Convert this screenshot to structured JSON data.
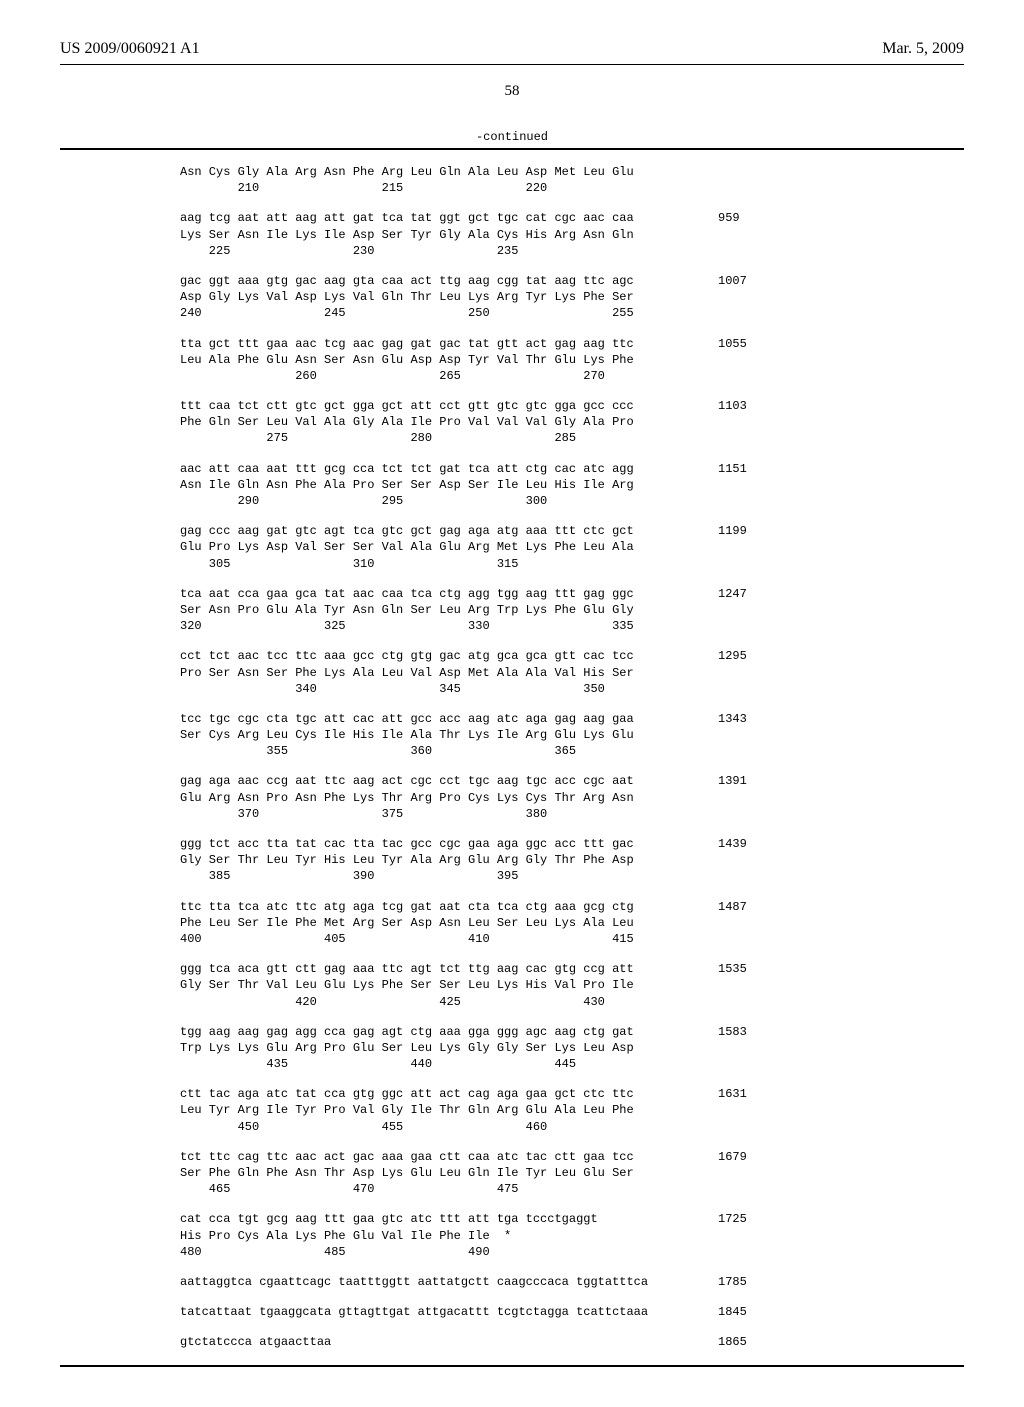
{
  "header": {
    "pubnum": "US 2009/0060921 A1",
    "date": "Mar. 5, 2009"
  },
  "page": "58",
  "continued": "-continued",
  "blocks": [
    {
      "l1": "Asn Cys Gly Ala Arg Asn Phe Arg Leu Gln Ala Leu Asp Met Leu Glu",
      "l3": "        210                 215                 220",
      "end": ""
    },
    {
      "l1": "aag tcg aat att aag att gat tca tat ggt gct tgc cat cgc aac caa",
      "l2": "Lys Ser Asn Ile Lys Ile Asp Ser Tyr Gly Ala Cys His Arg Asn Gln",
      "l3": "    225                 230                 235",
      "end": "959"
    },
    {
      "l1": "gac ggt aaa gtg gac aag gta caa act ttg aag cgg tat aag ttc agc",
      "l2": "Asp Gly Lys Val Asp Lys Val Gln Thr Leu Lys Arg Tyr Lys Phe Ser",
      "l3": "240                 245                 250                 255",
      "end": "1007"
    },
    {
      "l1": "tta gct ttt gaa aac tcg aac gag gat gac tat gtt act gag aag ttc",
      "l2": "Leu Ala Phe Glu Asn Ser Asn Glu Asp Asp Tyr Val Thr Glu Lys Phe",
      "l3": "                260                 265                 270",
      "end": "1055"
    },
    {
      "l1": "ttt caa tct ctt gtc gct gga gct att cct gtt gtc gtc gga gcc ccc",
      "l2": "Phe Gln Ser Leu Val Ala Gly Ala Ile Pro Val Val Val Gly Ala Pro",
      "l3": "            275                 280                 285",
      "end": "1103"
    },
    {
      "l1": "aac att caa aat ttt gcg cca tct tct gat tca att ctg cac atc agg",
      "l2": "Asn Ile Gln Asn Phe Ala Pro Ser Ser Asp Ser Ile Leu His Ile Arg",
      "l3": "        290                 295                 300",
      "end": "1151"
    },
    {
      "l1": "gag ccc aag gat gtc agt tca gtc gct gag aga atg aaa ttt ctc gct",
      "l2": "Glu Pro Lys Asp Val Ser Ser Val Ala Glu Arg Met Lys Phe Leu Ala",
      "l3": "    305                 310                 315",
      "end": "1199"
    },
    {
      "l1": "tca aat cca gaa gca tat aac caa tca ctg agg tgg aag ttt gag ggc",
      "l2": "Ser Asn Pro Glu Ala Tyr Asn Gln Ser Leu Arg Trp Lys Phe Glu Gly",
      "l3": "320                 325                 330                 335",
      "end": "1247"
    },
    {
      "l1": "cct tct aac tcc ttc aaa gcc ctg gtg gac atg gca gca gtt cac tcc",
      "l2": "Pro Ser Asn Ser Phe Lys Ala Leu Val Asp Met Ala Ala Val His Ser",
      "l3": "                340                 345                 350",
      "end": "1295"
    },
    {
      "l1": "tcc tgc cgc cta tgc att cac att gcc acc aag atc aga gag aag gaa",
      "l2": "Ser Cys Arg Leu Cys Ile His Ile Ala Thr Lys Ile Arg Glu Lys Glu",
      "l3": "            355                 360                 365",
      "end": "1343"
    },
    {
      "l1": "gag aga aac ccg aat ttc aag act cgc cct tgc aag tgc acc cgc aat",
      "l2": "Glu Arg Asn Pro Asn Phe Lys Thr Arg Pro Cys Lys Cys Thr Arg Asn",
      "l3": "        370                 375                 380",
      "end": "1391"
    },
    {
      "l1": "ggg tct acc tta tat cac tta tac gcc cgc gaa aga ggc acc ttt gac",
      "l2": "Gly Ser Thr Leu Tyr His Leu Tyr Ala Arg Glu Arg Gly Thr Phe Asp",
      "l3": "    385                 390                 395",
      "end": "1439"
    },
    {
      "l1": "ttc tta tca atc ttc atg aga tcg gat aat cta tca ctg aaa gcg ctg",
      "l2": "Phe Leu Ser Ile Phe Met Arg Ser Asp Asn Leu Ser Leu Lys Ala Leu",
      "l3": "400                 405                 410                 415",
      "end": "1487"
    },
    {
      "l1": "ggg tca aca gtt ctt gag aaa ttc agt tct ttg aag cac gtg ccg att",
      "l2": "Gly Ser Thr Val Leu Glu Lys Phe Ser Ser Leu Lys His Val Pro Ile",
      "l3": "                420                 425                 430",
      "end": "1535"
    },
    {
      "l1": "tgg aag aag gag agg cca gag agt ctg aaa gga ggg agc aag ctg gat",
      "l2": "Trp Lys Lys Glu Arg Pro Glu Ser Leu Lys Gly Gly Ser Lys Leu Asp",
      "l3": "            435                 440                 445",
      "end": "1583"
    },
    {
      "l1": "ctt tac aga atc tat cca gtg ggc att act cag aga gaa gct ctc ttc",
      "l2": "Leu Tyr Arg Ile Tyr Pro Val Gly Ile Thr Gln Arg Glu Ala Leu Phe",
      "l3": "        450                 455                 460",
      "end": "1631"
    },
    {
      "l1": "tct ttc cag ttc aac act gac aaa gaa ctt caa atc tac ctt gaa tcc",
      "l2": "Ser Phe Gln Phe Asn Thr Asp Lys Glu Leu Gln Ile Tyr Leu Glu Ser",
      "l3": "    465                 470                 475",
      "end": "1679"
    },
    {
      "l1": "cat cca tgt gcg aag ttt gaa gtc atc ttt att tga tccctgaggt",
      "l2": "His Pro Cys Ala Lys Phe Glu Val Ile Phe Ile  *",
      "l3": "480                 485                 490",
      "end": "1725"
    }
  ],
  "tail": [
    {
      "seq": "aattaggtca cgaattcagc taatttggtt aattatgctt caagcccaca tggtatttca",
      "end": "1785"
    },
    {
      "seq": "tatcattaat tgaaggcata gttagttgat attgacattt tcgtctagga tcattctaaa",
      "end": "1845"
    },
    {
      "seq": "gtctatccca atgaacttaa",
      "end": "1865"
    }
  ]
}
